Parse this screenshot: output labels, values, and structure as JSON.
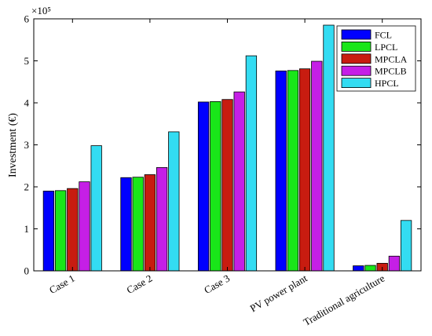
{
  "chart_data": {
    "type": "bar",
    "title": "",
    "xlabel": "",
    "ylabel": "Investment (€)",
    "y_exponent_label": "×10⁵",
    "ylim": [
      0,
      6
    ],
    "yticks": [
      0,
      1,
      2,
      3,
      4,
      5,
      6
    ],
    "y_scale_factor": 100000,
    "categories": [
      "Case 1",
      "Case 2",
      "Case 3",
      "PV power plant",
      "Traditional agriculture"
    ],
    "legend_position": "top-right",
    "grid": false,
    "series": [
      {
        "name": "FCL",
        "color": "#0000ff",
        "values": [
          1.9,
          2.22,
          4.02,
          4.76,
          0.12
        ]
      },
      {
        "name": "LPCL",
        "color": "#19e619",
        "values": [
          1.91,
          2.23,
          4.03,
          4.77,
          0.13
        ]
      },
      {
        "name": "MPCLA",
        "color": "#c81c10",
        "values": [
          1.96,
          2.29,
          4.08,
          4.81,
          0.18
        ]
      },
      {
        "name": "MPCLB",
        "color": "#c51fe6",
        "values": [
          2.12,
          2.46,
          4.26,
          4.99,
          0.35
        ]
      },
      {
        "name": "HPCL",
        "color": "#33dcf2",
        "values": [
          2.98,
          3.31,
          5.12,
          5.85,
          1.2
        ]
      }
    ]
  }
}
